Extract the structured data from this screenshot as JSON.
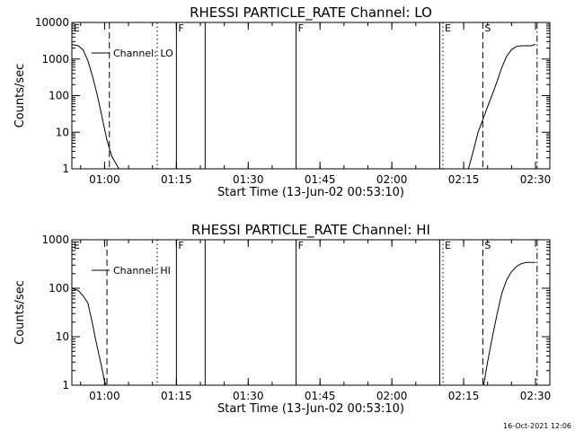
{
  "figure": {
    "date_stamp": "16-Oct-2021 12:06"
  },
  "chart_data": [
    {
      "type": "line",
      "title": "RHESSI PARTICLE_RATE Channel: LO",
      "xlabel": "Start Time (13-Jun-02 00:53:10)",
      "ylabel": "Counts/sec",
      "yscale": "log",
      "ylim": [
        1,
        10000
      ],
      "xlim": [
        "00:53:10",
        "02:33:00"
      ],
      "x_ticks": [
        "01:00",
        "01:15",
        "01:30",
        "01:45",
        "02:00",
        "02:15",
        "02:30"
      ],
      "y_ticks": [
        "1",
        "10",
        "100",
        "1000",
        "10000"
      ],
      "legend": {
        "label": "Channel: LO",
        "placement": "top-left"
      },
      "series": [
        {
          "name": "Channel: LO",
          "segments": [
            [
              [
                "00:53:10",
                2500
              ],
              [
                "00:54:30",
                2300
              ],
              [
                "00:55:30",
                1800
              ],
              [
                "00:56:30",
                900
              ],
              [
                "00:57:30",
                330
              ],
              [
                "00:58:30",
                100
              ],
              [
                "00:59:30",
                25
              ],
              [
                "01:00:30",
                6
              ],
              [
                "01:01:30",
                2.2
              ],
              [
                "01:02:30",
                1.3
              ],
              [
                "01:03:00",
                1
              ]
            ],
            [
              [
                "02:16:00",
                1
              ],
              [
                "02:17:00",
                3
              ],
              [
                "02:18:00",
                10
              ],
              [
                "02:19:00",
                22
              ],
              [
                "02:20:00",
                50
              ],
              [
                "02:21:00",
                110
              ],
              [
                "02:22:00",
                250
              ],
              [
                "02:23:00",
                600
              ],
              [
                "02:24:00",
                1200
              ],
              [
                "02:25:00",
                1800
              ],
              [
                "02:26:00",
                2200
              ],
              [
                "02:27:00",
                2300
              ],
              [
                "02:29:00",
                2300
              ],
              [
                "02:30:00",
                2500
              ]
            ]
          ]
        }
      ],
      "markers": [
        {
          "time": "00:53:10",
          "style": "solid",
          "label": "E"
        },
        {
          "time": "01:01:00",
          "style": "dashed",
          "label": ""
        },
        {
          "time": "01:11:00",
          "style": "dotted",
          "label": ""
        },
        {
          "time": "01:15:00",
          "style": "solid",
          "label": "F"
        },
        {
          "time": "01:21:00",
          "style": "solid",
          "label": ""
        },
        {
          "time": "01:40:00",
          "style": "solid",
          "label": "F"
        },
        {
          "time": "02:10:00",
          "style": "solid",
          "label": ""
        },
        {
          "time": "02:10:40",
          "style": "dotted",
          "label": "E"
        },
        {
          "time": "02:19:00",
          "style": "dashed",
          "label": "S"
        },
        {
          "time": "02:30:20",
          "style": "dashdot",
          "label": ""
        }
      ]
    },
    {
      "type": "line",
      "title": "RHESSI PARTICLE_RATE Channel: HI",
      "xlabel": "Start Time (13-Jun-02 00:53:10)",
      "ylabel": "Counts/sec",
      "yscale": "log",
      "ylim": [
        1,
        1000
      ],
      "xlim": [
        "00:53:10",
        "02:33:00"
      ],
      "x_ticks": [
        "01:00",
        "01:15",
        "01:30",
        "01:45",
        "02:00",
        "02:15",
        "02:30"
      ],
      "y_ticks": [
        "1",
        "10",
        "100",
        "1000"
      ],
      "legend": {
        "label": "Channel: HI",
        "placement": "top-left"
      },
      "series": [
        {
          "name": "Channel: HI",
          "segments": [
            [
              [
                "00:53:10",
                100
              ],
              [
                "00:54:30",
                90
              ],
              [
                "00:55:30",
                70
              ],
              [
                "00:56:30",
                50
              ],
              [
                "00:57:00",
                30
              ],
              [
                "00:57:30",
                18
              ],
              [
                "00:58:00",
                10
              ],
              [
                "00:58:40",
                5
              ],
              [
                "00:59:20",
                2.5
              ],
              [
                "01:00:00",
                1.2
              ],
              [
                "01:00:20",
                1
              ]
            ],
            [
              [
                "02:19:10",
                1
              ],
              [
                "02:20:00",
                3
              ],
              [
                "02:21:00",
                10
              ],
              [
                "02:22:00",
                30
              ],
              [
                "02:23:00",
                80
              ],
              [
                "02:24:00",
                150
              ],
              [
                "02:25:00",
                220
              ],
              [
                "02:26:00",
                280
              ],
              [
                "02:27:00",
                320
              ],
              [
                "02:28:00",
                340
              ],
              [
                "02:30:00",
                340
              ]
            ]
          ]
        }
      ],
      "markers": [
        {
          "time": "00:53:10",
          "style": "solid",
          "label": "E"
        },
        {
          "time": "01:00:30",
          "style": "dashed",
          "label": ""
        },
        {
          "time": "01:11:00",
          "style": "dotted",
          "label": ""
        },
        {
          "time": "01:15:00",
          "style": "solid",
          "label": "F"
        },
        {
          "time": "01:21:00",
          "style": "solid",
          "label": ""
        },
        {
          "time": "01:40:00",
          "style": "solid",
          "label": "F"
        },
        {
          "time": "02:10:00",
          "style": "solid",
          "label": ""
        },
        {
          "time": "02:10:40",
          "style": "dotted",
          "label": "E"
        },
        {
          "time": "02:19:00",
          "style": "dashed",
          "label": "S"
        },
        {
          "time": "02:30:20",
          "style": "dashdot",
          "label": ""
        }
      ]
    }
  ]
}
